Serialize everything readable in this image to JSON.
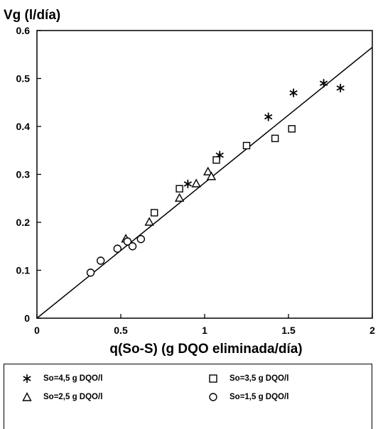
{
  "chart_data": {
    "type": "scatter",
    "ylabel": "Vg (l/día)",
    "xlabel": "q(So-S) (g DQO eliminada/día)",
    "xlim": [
      0,
      2
    ],
    "ylim": [
      0,
      0.6
    ],
    "x_ticks": [
      "0",
      "0.5",
      "1",
      "1.5",
      "2"
    ],
    "y_ticks": [
      "0",
      "0.1",
      "0.2",
      "0.3",
      "0.4",
      "0.5",
      "0.6"
    ],
    "grid": false,
    "legend_position": "bottom",
    "series": [
      {
        "name": "So=4,5 g DQO/l",
        "marker": "asterisk",
        "points": [
          [
            0.9,
            0.28
          ],
          [
            1.09,
            0.34
          ],
          [
            1.38,
            0.42
          ],
          [
            1.53,
            0.47
          ],
          [
            1.71,
            0.49
          ],
          [
            1.81,
            0.48
          ]
        ]
      },
      {
        "name": "So=3,5 g DQO/l",
        "marker": "square",
        "points": [
          [
            0.7,
            0.22
          ],
          [
            0.85,
            0.27
          ],
          [
            1.07,
            0.33
          ],
          [
            1.25,
            0.36
          ],
          [
            1.42,
            0.375
          ],
          [
            1.52,
            0.395
          ]
        ]
      },
      {
        "name": "So=2,5 g DQO/l",
        "marker": "triangle",
        "points": [
          [
            0.53,
            0.165
          ],
          [
            0.67,
            0.2
          ],
          [
            0.85,
            0.25
          ],
          [
            0.95,
            0.28
          ],
          [
            1.02,
            0.305
          ],
          [
            1.04,
            0.295
          ]
        ]
      },
      {
        "name": "So=1,5 g DQO/l",
        "marker": "circle",
        "points": [
          [
            0.32,
            0.095
          ],
          [
            0.38,
            0.12
          ],
          [
            0.48,
            0.145
          ],
          [
            0.54,
            0.16
          ],
          [
            0.57,
            0.15
          ],
          [
            0.62,
            0.165
          ]
        ]
      }
    ],
    "fit_line": {
      "x": [
        0,
        2
      ],
      "y": [
        0,
        0.565
      ]
    }
  }
}
